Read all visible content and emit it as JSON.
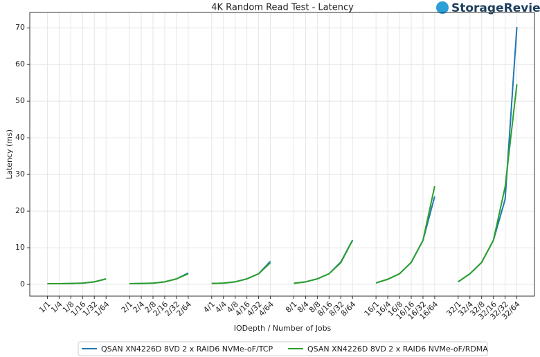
{
  "chart_data": {
    "type": "line",
    "title": "4K Random Read Test - Latency",
    "logo": "StorageReview",
    "x_label": "IODepth / Number of Jobs",
    "y_label": "Latency (ms)",
    "categories": [
      "1/1",
      "1/4",
      "1/8",
      "1/16",
      "1/32",
      "1/64",
      null,
      "2/1",
      "2/4",
      "2/8",
      "2/16",
      "2/32",
      "2/64",
      null,
      "4/1",
      "4/4",
      "4/8",
      "4/16",
      "4/32",
      "4/64",
      null,
      "8/1",
      "8/4",
      "8/8",
      "8/16",
      "8/32",
      "8/64",
      null,
      "16/1",
      "16/4",
      "16/8",
      "16/16",
      "16/32",
      "16/64",
      null,
      "32/1",
      "32/4",
      "32/8",
      "32/16",
      "32/32",
      "32/64"
    ],
    "series": [
      {
        "name": "QSAN XN4226D 8VD 2 x RAID6 NVMe-oF/TCP",
        "color": "#1f77b4",
        "values": [
          0.2,
          0.2,
          0.25,
          0.35,
          0.7,
          1.5,
          null,
          0.2,
          0.25,
          0.35,
          0.7,
          1.5,
          3.1,
          null,
          0.25,
          0.35,
          0.7,
          1.5,
          2.9,
          6.3,
          null,
          0.3,
          0.7,
          1.5,
          2.9,
          6.1,
          12.1,
          null,
          0.4,
          1.4,
          2.9,
          6.0,
          12.0,
          24.0,
          null,
          0.7,
          2.9,
          6.0,
          12.0,
          23.2,
          70.2
        ]
      },
      {
        "name": "QSAN XN4226D 8VD 2 x RAID6 NVMe-oF/RDMA",
        "color": "#2ca02c",
        "values": [
          0.2,
          0.2,
          0.25,
          0.35,
          0.7,
          1.5,
          null,
          0.2,
          0.25,
          0.35,
          0.7,
          1.5,
          2.9,
          null,
          0.25,
          0.35,
          0.7,
          1.5,
          2.9,
          5.9,
          null,
          0.3,
          0.7,
          1.5,
          2.9,
          5.9,
          12.0,
          null,
          0.4,
          1.4,
          2.9,
          6.0,
          12.0,
          26.8,
          null,
          0.7,
          2.9,
          6.0,
          12.0,
          26.6,
          54.6
        ]
      }
    ],
    "ylim": [
      -3.2,
      74.2
    ],
    "yticks": [
      0,
      10,
      20,
      30,
      40,
      50,
      60,
      70
    ],
    "grid": true,
    "legend": "bottom"
  }
}
